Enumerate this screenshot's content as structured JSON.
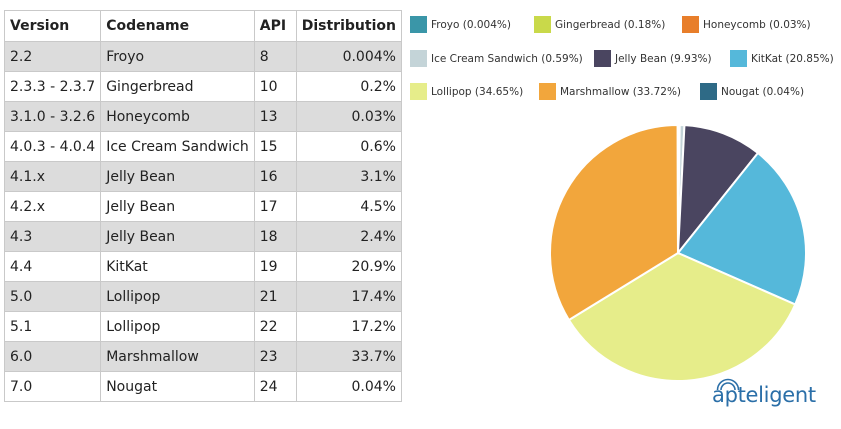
{
  "table": {
    "headers": {
      "version": "Version",
      "codename": "Codename",
      "api": "API",
      "distribution": "Distribution"
    },
    "rows": [
      {
        "version": "2.2",
        "codename": "Froyo",
        "api": "8",
        "distribution": "0.004%"
      },
      {
        "version": "2.3.3 - 2.3.7",
        "codename": "Gingerbread",
        "api": "10",
        "distribution": "0.2%"
      },
      {
        "version": "3.1.0 - 3.2.6",
        "codename": "Honeycomb",
        "api": "13",
        "distribution": "0.03%"
      },
      {
        "version": "4.0.3 - 4.0.4",
        "codename": "Ice Cream Sandwich",
        "api": "15",
        "distribution": "0.6%"
      },
      {
        "version": "4.1.x",
        "codename": "Jelly Bean",
        "api": "16",
        "distribution": "3.1%"
      },
      {
        "version": "4.2.x",
        "codename": "Jelly Bean",
        "api": "17",
        "distribution": "4.5%"
      },
      {
        "version": "4.3",
        "codename": "Jelly Bean",
        "api": "18",
        "distribution": "2.4%"
      },
      {
        "version": "4.4",
        "codename": "KitKat",
        "api": "19",
        "distribution": "20.9%"
      },
      {
        "version": "5.0",
        "codename": "Lollipop",
        "api": "21",
        "distribution": "17.4%"
      },
      {
        "version": "5.1",
        "codename": "Lollipop",
        "api": "22",
        "distribution": "17.2%"
      },
      {
        "version": "6.0",
        "codename": "Marshmallow",
        "api": "23",
        "distribution": "33.7%"
      },
      {
        "version": "7.0",
        "codename": "Nougat",
        "api": "24",
        "distribution": "0.04%"
      }
    ]
  },
  "chart_data": {
    "type": "pie",
    "legend_position": "top",
    "slices": [
      {
        "label": "Froyo (0.004%)",
        "name": "Froyo",
        "value": 0.004,
        "color": "#3a96a8"
      },
      {
        "label": "Gingerbread (0.18%)",
        "name": "Gingerbread",
        "value": 0.18,
        "color": "#c9d94a"
      },
      {
        "label": "Honeycomb (0.03%)",
        "name": "Honeycomb",
        "value": 0.03,
        "color": "#e87e2a"
      },
      {
        "label": "Ice Cream Sandwich (0.59%)",
        "name": "Ice Cream Sandwich",
        "value": 0.59,
        "color": "#c4d4d8"
      },
      {
        "label": "Jelly Bean (9.93%)",
        "name": "Jelly Bean",
        "value": 9.93,
        "color": "#4a4560"
      },
      {
        "label": "KitKat (20.85%)",
        "name": "KitKat",
        "value": 20.85,
        "color": "#55b8da"
      },
      {
        "label": "Lollipop (34.65%)",
        "name": "Lollipop",
        "value": 34.65,
        "color": "#e6ed8a"
      },
      {
        "label": "Marshmallow (33.72%)",
        "name": "Marshmallow",
        "value": 33.72,
        "color": "#f2a63c"
      },
      {
        "label": "Nougat (0.04%)",
        "name": "Nougat",
        "value": 0.04,
        "color": "#2e6a86"
      }
    ]
  },
  "logo": {
    "text": "apteligent",
    "icon": "signal-waves-icon"
  }
}
